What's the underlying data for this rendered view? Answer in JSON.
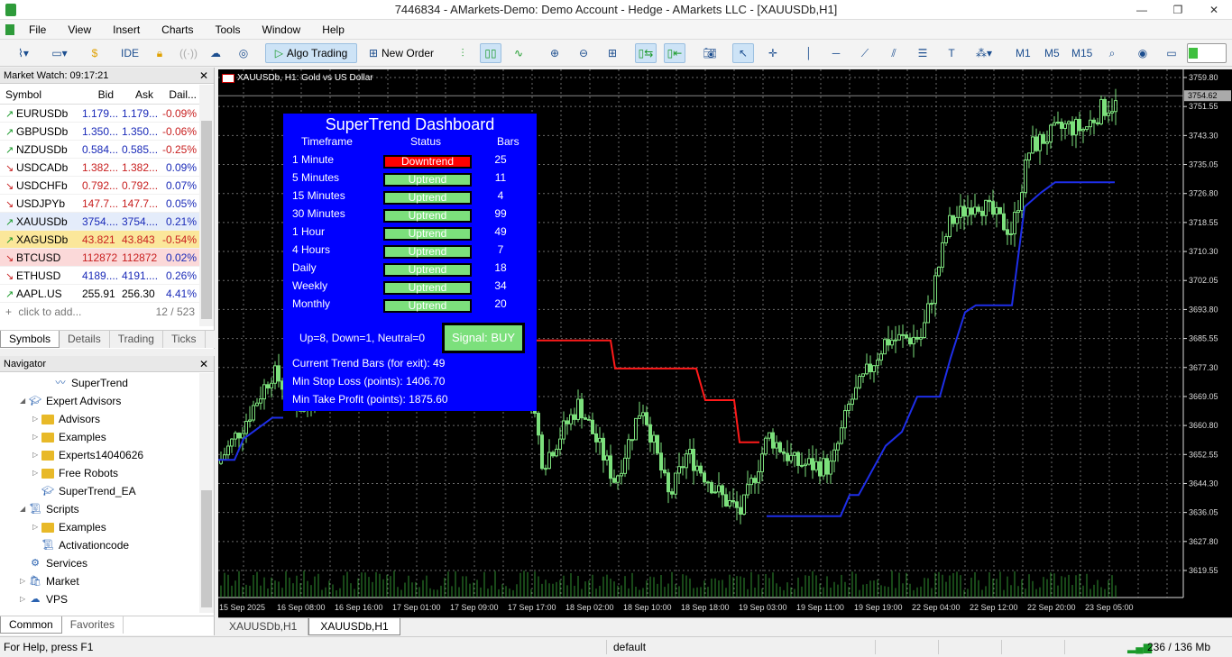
{
  "window": {
    "title": "7446834 - AMarkets-Demo: Demo Account - Hedge - AMarkets LLC - [XAUUSDb,H1]",
    "controls": [
      "—",
      "❐",
      "✕"
    ]
  },
  "menu": [
    "File",
    "View",
    "Insert",
    "Charts",
    "Tools",
    "Window",
    "Help"
  ],
  "toolbar": {
    "ide": "IDE",
    "algo_trading": "Algo Trading",
    "new_order": "New Order",
    "timeframes": [
      "M1",
      "M5",
      "M15"
    ]
  },
  "market_watch": {
    "title": "Market Watch: 09:17:21",
    "columns": [
      "Symbol",
      "Bid",
      "Ask",
      "Dail..."
    ],
    "rows": [
      {
        "symbol": "EURUSDb",
        "bid": "1.179...",
        "ask": "1.179...",
        "change": "-0.09%",
        "dir": "up",
        "bg": "#ffffff",
        "color": "#1a2ab8"
      },
      {
        "symbol": "GBPUSDb",
        "bid": "1.350...",
        "ask": "1.350...",
        "change": "-0.06%",
        "dir": "up",
        "bg": "#ffffff",
        "color": "#1a2ab8"
      },
      {
        "symbol": "NZDUSDb",
        "bid": "0.584...",
        "ask": "0.585...",
        "change": "-0.25%",
        "dir": "up",
        "bg": "#ffffff",
        "color": "#1a2ab8"
      },
      {
        "symbol": "USDCADb",
        "bid": "1.382...",
        "ask": "1.382...",
        "change": "0.09%",
        "dir": "down",
        "bg": "#ffffff",
        "color": "#c82020"
      },
      {
        "symbol": "USDCHFb",
        "bid": "0.792...",
        "ask": "0.792...",
        "change": "0.07%",
        "dir": "down",
        "bg": "#ffffff",
        "color": "#c82020"
      },
      {
        "symbol": "USDJPYb",
        "bid": "147.7...",
        "ask": "147.7...",
        "change": "0.05%",
        "dir": "down",
        "bg": "#ffffff",
        "color": "#c82020"
      },
      {
        "symbol": "XAUUSDb",
        "bid": "3754....",
        "ask": "3754....",
        "change": "0.21%",
        "dir": "up",
        "bg": "#e4ecfa",
        "color": "#1a2ab8"
      },
      {
        "symbol": "XAGUSDb",
        "bid": "43.821",
        "ask": "43.843",
        "change": "-0.54%",
        "dir": "up",
        "bg": "#fbe79a",
        "color": "#c82020"
      },
      {
        "symbol": "BTCUSD",
        "bid": "112872",
        "ask": "112872",
        "change": "0.02%",
        "dir": "down",
        "bg": "#fbd9d9",
        "color": "#c82020"
      },
      {
        "symbol": "ETHUSD",
        "bid": "4189....",
        "ask": "4191....",
        "change": "0.26%",
        "dir": "down",
        "bg": "#ffffff",
        "color": "#1a2ab8"
      },
      {
        "symbol": "AAPL.US",
        "bid": "255.91",
        "ask": "256.30",
        "change": "4.41%",
        "dir": "up",
        "bg": "#ffffff",
        "color": "#000000"
      }
    ],
    "add_placeholder": "click to add...",
    "count": "12 / 523",
    "tabs": [
      "Symbols",
      "Details",
      "Trading",
      "Ticks"
    ]
  },
  "navigator": {
    "title": "Navigator",
    "items": [
      {
        "label": "SuperTrend",
        "icon": "indicator-icon",
        "indent": 3
      },
      {
        "label": "Expert Advisors",
        "icon": "expert-icon",
        "indent": 1,
        "expanded": true
      },
      {
        "label": "Advisors",
        "icon": "folder-icon",
        "indent": 2,
        "expandable": true
      },
      {
        "label": "Examples",
        "icon": "folder-icon",
        "indent": 2,
        "expandable": true
      },
      {
        "label": "Experts14040626",
        "icon": "folder-icon",
        "indent": 2,
        "expandable": true
      },
      {
        "label": "Free Robots",
        "icon": "folder-icon",
        "indent": 2,
        "expandable": true
      },
      {
        "label": "SuperTrend_EA",
        "icon": "expert-icon",
        "indent": 2
      },
      {
        "label": "Scripts",
        "icon": "script-icon",
        "indent": 1,
        "expanded": true
      },
      {
        "label": "Examples",
        "icon": "folder-icon",
        "indent": 2,
        "expandable": true
      },
      {
        "label": "Activationcode",
        "icon": "script-icon",
        "indent": 2
      },
      {
        "label": "Services",
        "icon": "services-icon",
        "indent": 1
      },
      {
        "label": "Market",
        "icon": "market-icon",
        "indent": 1,
        "expandable": true
      },
      {
        "label": "VPS",
        "icon": "vps-icon",
        "indent": 1,
        "expandable": true
      }
    ],
    "tabs": [
      "Common",
      "Favorites"
    ]
  },
  "chart": {
    "title": "XAUUSDb, H1:  Gold vs US Dollar",
    "price_labels": [
      "3759.80",
      "3751.55",
      "3743.30",
      "3735.05",
      "3726.80",
      "3718.55",
      "3710.30",
      "3702.05",
      "3693.80",
      "3685.55",
      "3677.30",
      "3669.05",
      "3660.80",
      "3652.55",
      "3644.30",
      "3636.05",
      "3627.80",
      "3619.55"
    ],
    "current_price": "3754.62",
    "time_labels": [
      "15 Sep 2025",
      "16 Sep 08:00",
      "16 Sep 16:00",
      "17 Sep 01:00",
      "17 Sep 09:00",
      "17 Sep 17:00",
      "18 Sep 02:00",
      "18 Sep 10:00",
      "18 Sep 18:00",
      "19 Sep 03:00",
      "19 Sep 11:00",
      "19 Sep 19:00",
      "22 Sep 04:00",
      "22 Sep 12:00",
      "22 Sep 20:00",
      "23 Sep 05:00"
    ],
    "colors": {
      "bg": "#000000",
      "grid": "#6a6a6a",
      "candle": "#7ce07c",
      "trend_up": "#1e2ee8",
      "trend_down": "#ff1a1a"
    }
  },
  "dashboard": {
    "title": "SuperTrend Dashboard",
    "headers": {
      "timeframe": "Timeframe",
      "status": "Status",
      "bars": "Bars"
    },
    "rows": [
      {
        "tf": "1 Minute",
        "status": "Downtrend",
        "bars": "25"
      },
      {
        "tf": "5 Minutes",
        "status": "Uptrend",
        "bars": "11"
      },
      {
        "tf": "15 Minutes",
        "status": "Uptrend",
        "bars": "4"
      },
      {
        "tf": "30 Minutes",
        "status": "Uptrend",
        "bars": "99"
      },
      {
        "tf": "1 Hour",
        "status": "Uptrend",
        "bars": "49"
      },
      {
        "tf": "4 Hours",
        "status": "Uptrend",
        "bars": "7"
      },
      {
        "tf": "Daily",
        "status": "Uptrend",
        "bars": "18"
      },
      {
        "tf": "Weekly",
        "status": "Uptrend",
        "bars": "34"
      },
      {
        "tf": "Monthly",
        "status": "Uptrend",
        "bars": "20"
      }
    ],
    "summary": "Up=8, Down=1, Neutral=0",
    "signal": "Signal: BUY",
    "current_bars": "Current Trend Bars (for exit): 49",
    "min_sl": "Min Stop Loss (points): 1406.70",
    "min_tp": "Min Take Profit (points): 1875.60"
  },
  "chart_tabs": [
    "XAUUSDb,H1",
    "XAUUSDb,H1"
  ],
  "status": {
    "help": "For Help, press F1",
    "profile": "default",
    "memory": "236 / 136 Mb"
  }
}
